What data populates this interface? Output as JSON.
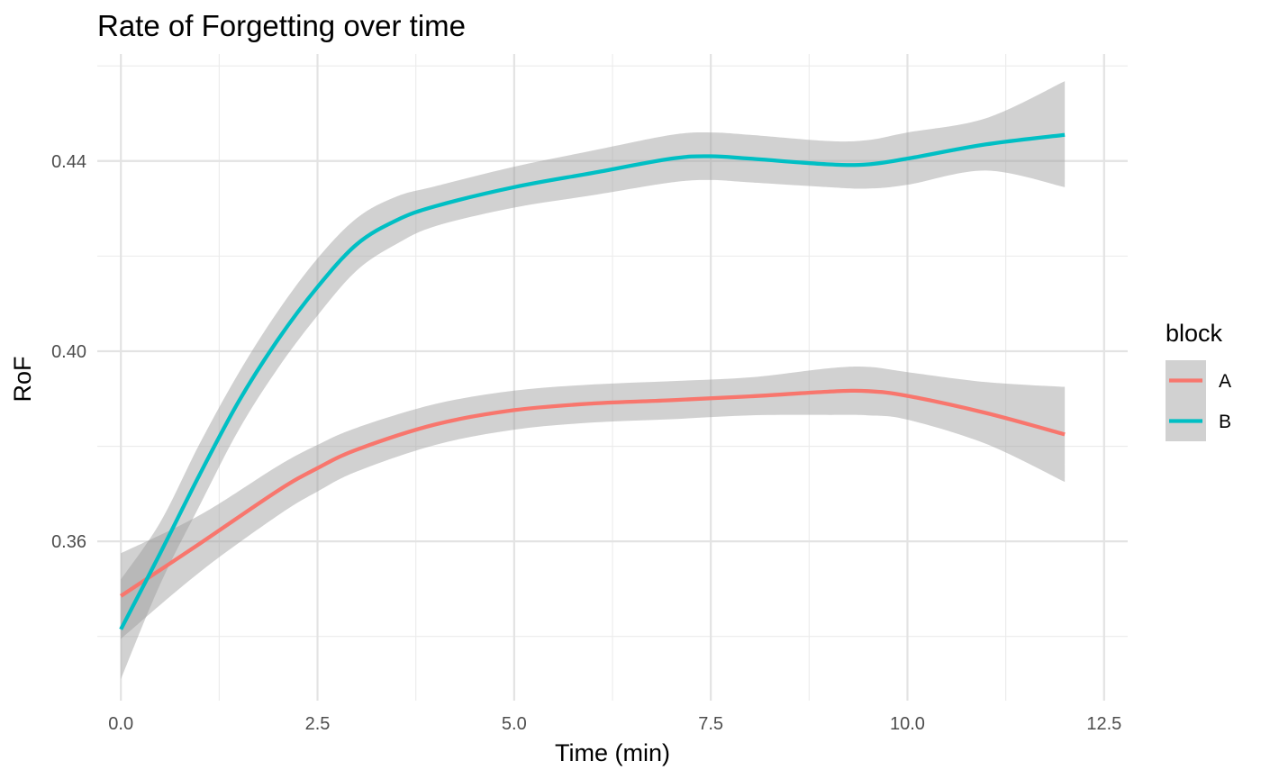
{
  "chart_data": {
    "type": "line",
    "title": "Rate of Forgetting over time",
    "xlabel": "Time (min)",
    "ylabel": "RoF",
    "xlim": [
      -0.3,
      12.8
    ],
    "ylim": [
      0.3265,
      0.4625
    ],
    "x_ticks": [
      0,
      2.5,
      5,
      7.5,
      10,
      12.5
    ],
    "x_tick_labels": [
      "0.0",
      "2.5",
      "5.0",
      "7.5",
      "10.0",
      "12.5"
    ],
    "y_ticks": [
      0.36,
      0.4,
      0.44
    ],
    "y_tick_labels": [
      "0.36",
      "0.40",
      "0.44"
    ],
    "grid": true,
    "legend": {
      "title": "block",
      "placement": "right"
    },
    "confidence_band_color": "#999999",
    "series": [
      {
        "name": "A",
        "color": "#F8766D",
        "x": [
          0,
          1,
          2,
          2.5,
          3,
          4,
          5,
          6,
          7,
          8,
          9,
          9.5,
          10,
          11,
          12
        ],
        "y": [
          0.3485,
          0.3595,
          0.3707,
          0.3754,
          0.3793,
          0.3846,
          0.3876,
          0.389,
          0.3897,
          0.3905,
          0.3915,
          0.3916,
          0.3906,
          0.387,
          0.3825
        ],
        "lower": [
          0.3395,
          0.3535,
          0.3655,
          0.3705,
          0.3747,
          0.3803,
          0.3835,
          0.385,
          0.3857,
          0.3865,
          0.3866,
          0.3865,
          0.3856,
          0.3805,
          0.3725
        ],
        "upper": [
          0.3575,
          0.3655,
          0.3759,
          0.3803,
          0.3839,
          0.3889,
          0.3917,
          0.393,
          0.3937,
          0.3945,
          0.3964,
          0.3967,
          0.3956,
          0.3935,
          0.3925
        ]
      },
      {
        "name": "B",
        "color": "#00BFC4",
        "x": [
          0,
          0.5,
          1,
          1.5,
          2,
          2.5,
          3,
          3.5,
          4,
          5,
          6,
          7,
          7.5,
          8,
          9,
          9.5,
          10,
          11,
          12
        ],
        "y": [
          0.3415,
          0.3575,
          0.374,
          0.3895,
          0.4025,
          0.4135,
          0.4225,
          0.4275,
          0.4305,
          0.4345,
          0.4375,
          0.4405,
          0.441,
          0.4405,
          0.4393,
          0.4393,
          0.4405,
          0.4435,
          0.4455
        ],
        "lower": [
          0.331,
          0.351,
          0.3675,
          0.3835,
          0.3965,
          0.4075,
          0.417,
          0.4225,
          0.4263,
          0.4302,
          0.4328,
          0.4355,
          0.436,
          0.4355,
          0.4345,
          0.4342,
          0.435,
          0.438,
          0.4345
        ],
        "upper": [
          0.352,
          0.364,
          0.3805,
          0.3955,
          0.4085,
          0.4195,
          0.428,
          0.4325,
          0.4347,
          0.4388,
          0.4422,
          0.4455,
          0.446,
          0.4455,
          0.4442,
          0.4444,
          0.446,
          0.449,
          0.4568
        ]
      }
    ]
  }
}
